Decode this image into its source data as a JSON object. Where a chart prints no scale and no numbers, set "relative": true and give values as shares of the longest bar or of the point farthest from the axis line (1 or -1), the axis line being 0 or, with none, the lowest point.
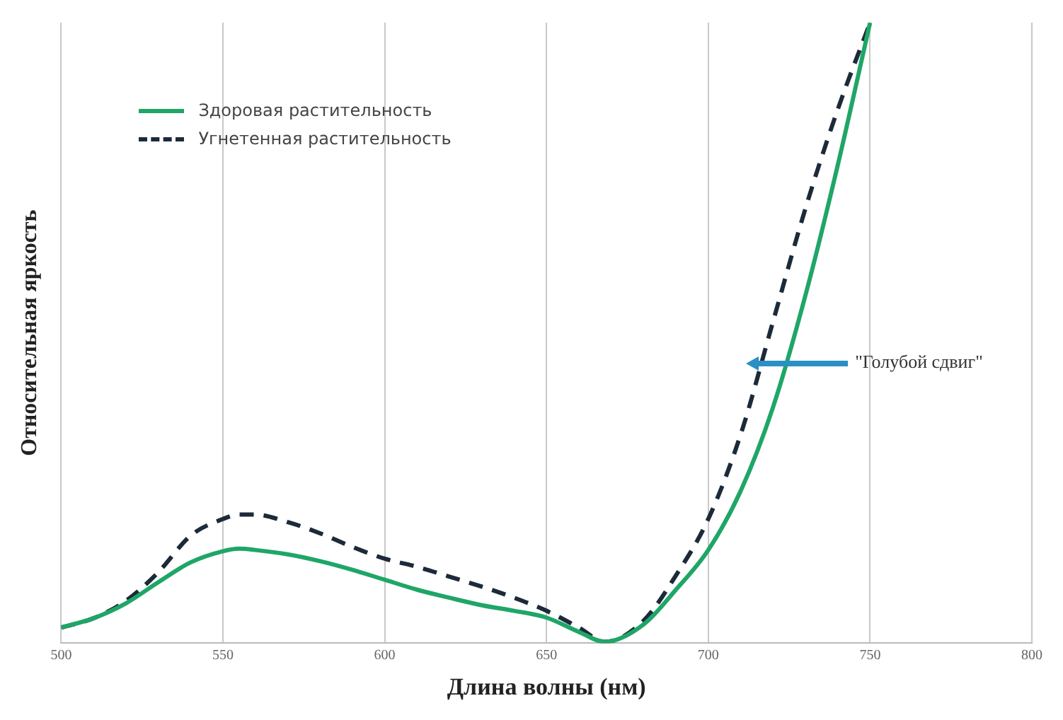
{
  "chart_data": {
    "type": "line",
    "relative": true,
    "xlabel": "Длина волны (нм)",
    "ylabel": "Относительная яркость",
    "xlim": [
      500,
      800
    ],
    "xticks": [
      500,
      550,
      600,
      650,
      700,
      750,
      800
    ],
    "grid": "x",
    "legend": "top left",
    "annotations": [
      "\"Голубой сдвиг\""
    ],
    "x": [
      500,
      510,
      520,
      530,
      540,
      550,
      555,
      560,
      570,
      580,
      590,
      600,
      610,
      620,
      630,
      640,
      650,
      660,
      668,
      680,
      690,
      700,
      710,
      720,
      730,
      740,
      750
    ],
    "series": [
      {
        "name": "Здоровая растительность",
        "color": "#1fa667",
        "line_style": "solid",
        "values": [
          0.025,
          0.04,
          0.064,
          0.098,
          0.13,
          0.148,
          0.152,
          0.15,
          0.143,
          0.132,
          0.118,
          0.102,
          0.086,
          0.073,
          0.061,
          0.052,
          0.041,
          0.018,
          0.002,
          0.03,
          0.086,
          0.15,
          0.245,
          0.38,
          0.56,
          0.77,
          1.0
        ]
      },
      {
        "name": "Угнетенная растительность",
        "color": "#1c2a3a",
        "line_style": "dashed",
        "values": [
          0.025,
          0.04,
          0.068,
          0.114,
          0.173,
          0.2,
          0.207,
          0.207,
          0.195,
          0.177,
          0.155,
          0.136,
          0.123,
          0.107,
          0.091,
          0.073,
          0.052,
          0.025,
          0.002,
          0.036,
          0.109,
          0.2,
          0.336,
          0.518,
          0.7,
          0.86,
          1.0
        ]
      }
    ]
  }
}
